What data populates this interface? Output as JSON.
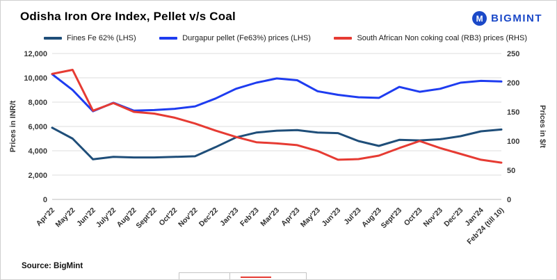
{
  "header": {
    "title": "Odisha Iron Ore Index, Pellet v/s Coal",
    "brand": "BIGMINT",
    "brand_color": "#1b49c8",
    "brand_icon": "bigmint-m-logo"
  },
  "footer": {
    "source": "Source: BigMint"
  },
  "chart_data": {
    "type": "line",
    "title": "Odisha Iron Ore Index, Pellet v/s Coal",
    "grid": "horizontal",
    "legend_position": "top",
    "categories": [
      "Apr'22",
      "May'22",
      "Jun'22",
      "July'22",
      "Aug'22",
      "Sept'22",
      "Oct'22",
      "Nov'22",
      "Dec'22",
      "Jan'23",
      "Feb'23",
      "Mar'23",
      "Apr'23",
      "May'23",
      "Jun'23",
      "Jul'23",
      "Aug'23",
      "Sept'23",
      "Oct'23",
      "Nov'23",
      "Dec'23",
      "Jan'24",
      "Feb'24 (till 10)"
    ],
    "left_axis": {
      "label": "Prices in INR/t",
      "min": 0,
      "max": 12000,
      "step": 2000
    },
    "right_axis": {
      "label": "Prices in $/t",
      "min": 0,
      "max": 250,
      "step": 50
    },
    "series": [
      {
        "name": "Fines Fe 62% (LHS)",
        "axis": "left",
        "color": "#1f4e79",
        "values": [
          5900,
          5000,
          3300,
          3500,
          3450,
          3450,
          3500,
          3550,
          4300,
          5100,
          5500,
          5650,
          5700,
          5500,
          5450,
          4800,
          4400,
          4900,
          4850,
          4950,
          5200,
          5600,
          5750
        ]
      },
      {
        "name": "Durgapur pellet (Fe63%) prices (LHS)",
        "axis": "left",
        "color": "#1e3cf0",
        "values": [
          10300,
          9000,
          7250,
          7950,
          7300,
          7350,
          7450,
          7650,
          8300,
          9100,
          9600,
          9950,
          9800,
          8900,
          8600,
          8400,
          8350,
          9250,
          8850,
          9100,
          9600,
          9750,
          9700
        ]
      },
      {
        "name": "South African Non coking coal (RB3) prices (RHS)",
        "axis": "right",
        "color": "#e63b33",
        "values": [
          215,
          222,
          152,
          165,
          150,
          147,
          140,
          130,
          118,
          107,
          98,
          96,
          93,
          83,
          68,
          69,
          75,
          88,
          100,
          88,
          78,
          68,
          63
        ]
      }
    ]
  }
}
